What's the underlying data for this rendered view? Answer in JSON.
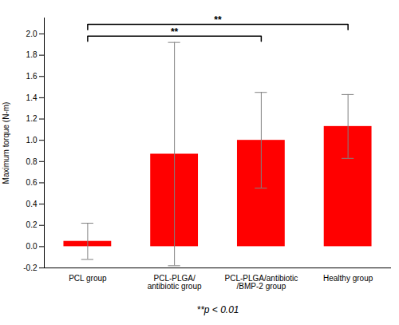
{
  "chart_data": {
    "type": "bar",
    "categories": [
      "PCL group",
      "PCL-PLGA/\nantibiotic group",
      "PCL-PLGA/antibiotic\n/BMP-2 group",
      "Healthy group"
    ],
    "values": [
      0.05,
      0.87,
      1.0,
      1.13
    ],
    "errors": [
      0.17,
      1.05,
      0.45,
      0.3
    ],
    "color": "#ff0000",
    "ylabel": "Maximum torque (N-m)",
    "ylim": [
      -0.2,
      2.15
    ],
    "yticks": [
      -0.2,
      {
        "value": 0,
        "label": "0.0"
      },
      0.2,
      0.4,
      0.6,
      0.8,
      {
        "value": 1,
        "label": "1.0"
      },
      1.2,
      1.4,
      1.6,
      1.8,
      {
        "value": 2,
        "label": "2.0"
      }
    ],
    "grid": false,
    "annotation": "**p < 0.01",
    "brackets": [
      {
        "from": "PCL group",
        "to": "PCL-PLGA/antibiotic\n/BMP-2 group",
        "y": 1.98,
        "label": "**"
      },
      {
        "from": "PCL group",
        "to": "Healthy group",
        "y": 2.09,
        "label": "**"
      }
    ]
  }
}
